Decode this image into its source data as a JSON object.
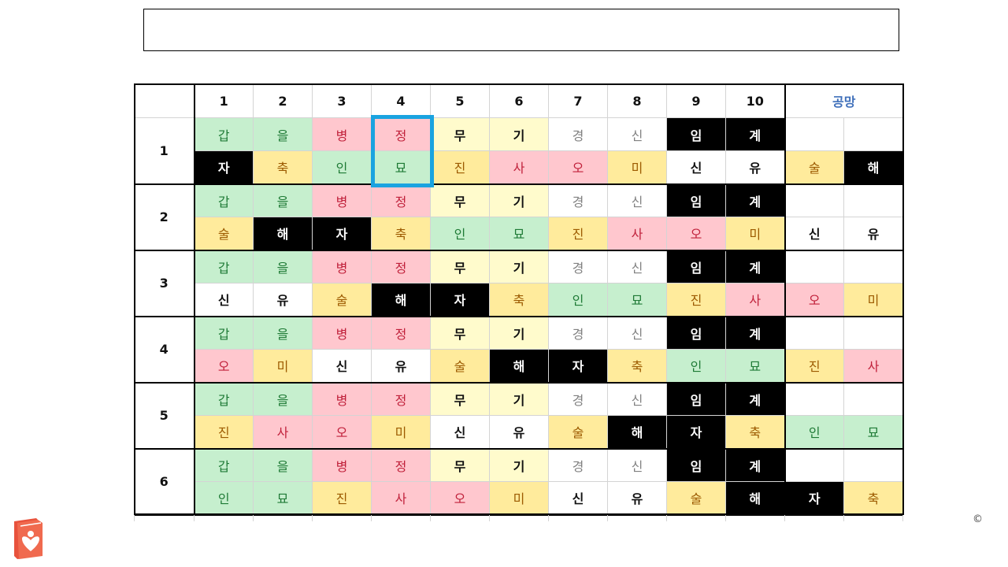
{
  "title_text": "",
  "header": {
    "columns": [
      "1",
      "2",
      "3",
      "4",
      "5",
      "6",
      "7",
      "8",
      "9",
      "10"
    ],
    "gongmang": "공망"
  },
  "stems": [
    "갑",
    "을",
    "병",
    "정",
    "무",
    "기",
    "경",
    "신",
    "임",
    "계"
  ],
  "rows": [
    {
      "label": "1",
      "branches": [
        "자",
        "축",
        "인",
        "묘",
        "진",
        "사",
        "오",
        "미",
        "신",
        "유"
      ],
      "gongmang": [
        "술",
        "해"
      ]
    },
    {
      "label": "2",
      "branches": [
        "술",
        "해",
        "자",
        "축",
        "인",
        "묘",
        "진",
        "사",
        "오",
        "미"
      ],
      "gongmang": [
        "신",
        "유"
      ]
    },
    {
      "label": "3",
      "branches": [
        "신",
        "유",
        "술",
        "해",
        "자",
        "축",
        "인",
        "묘",
        "진",
        "사"
      ],
      "gongmang": [
        "오",
        "미"
      ]
    },
    {
      "label": "4",
      "branches": [
        "오",
        "미",
        "신",
        "유",
        "술",
        "해",
        "자",
        "축",
        "인",
        "묘"
      ],
      "gongmang": [
        "진",
        "사"
      ]
    },
    {
      "label": "5",
      "branches": [
        "진",
        "사",
        "오",
        "미",
        "신",
        "유",
        "술",
        "해",
        "자",
        "축"
      ],
      "gongmang": [
        "인",
        "묘"
      ]
    },
    {
      "label": "6",
      "branches": [
        "인",
        "묘",
        "진",
        "사",
        "오",
        "미",
        "신",
        "유",
        "술",
        "해"
      ],
      "gongmang": [
        "자",
        "축"
      ]
    }
  ],
  "copyright": "©",
  "colors": {
    "highlight": "#1aa3e0",
    "wood_bg": "#c6efce",
    "fire_bg": "#ffc7ce",
    "earth_bg": "#ffeb9c",
    "yang_earth_bg": "#fffbcc",
    "water_bg": "#000000",
    "gongmang_text": "#3f6fba",
    "logo": "#e8523c"
  },
  "icons": {
    "logo": "heart-book-logo-icon"
  }
}
